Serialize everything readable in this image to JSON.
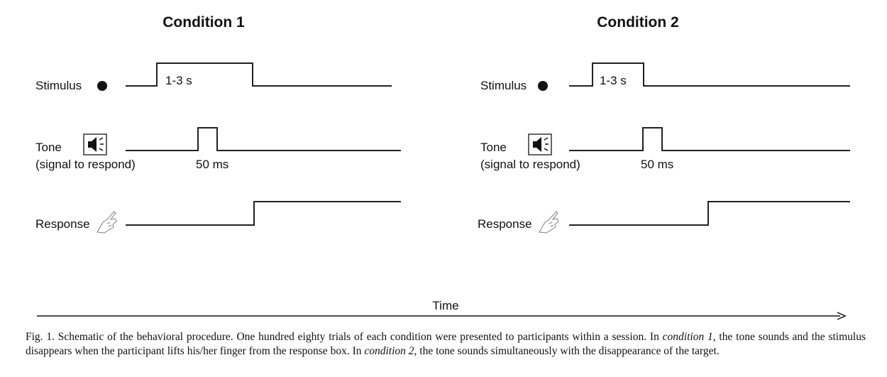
{
  "conditions": [
    {
      "title": "Condition 1",
      "stimulus_label": "Stimulus",
      "stimulus_duration": "1-3 s",
      "tone_label": "Tone",
      "tone_sublabel": "(signal to respond)",
      "tone_duration": "50 ms",
      "response_label": "Response"
    },
    {
      "title": "Condition 2",
      "stimulus_label": "Stimulus",
      "stimulus_duration": "1-3 s",
      "tone_label": "Tone",
      "tone_sublabel": "(signal to respond)",
      "tone_duration": "50 ms",
      "response_label": "Response"
    }
  ],
  "time_axis_label": "Time",
  "icons": [
    "dot-icon",
    "speaker-icon",
    "finger-icon"
  ],
  "caption": {
    "p1": "Fig. 1. Schematic of the behavioral procedure. One hundred eighty trials of each condition were presented to participants within a session. In ",
    "em1": "condition 1",
    "p2": ", the tone sounds and the stimulus disappears when the participant lifts his/her finger from the response box. In ",
    "em2": "condition 2",
    "p3": ", the tone sounds simultaneously with the disappearance of the target."
  }
}
